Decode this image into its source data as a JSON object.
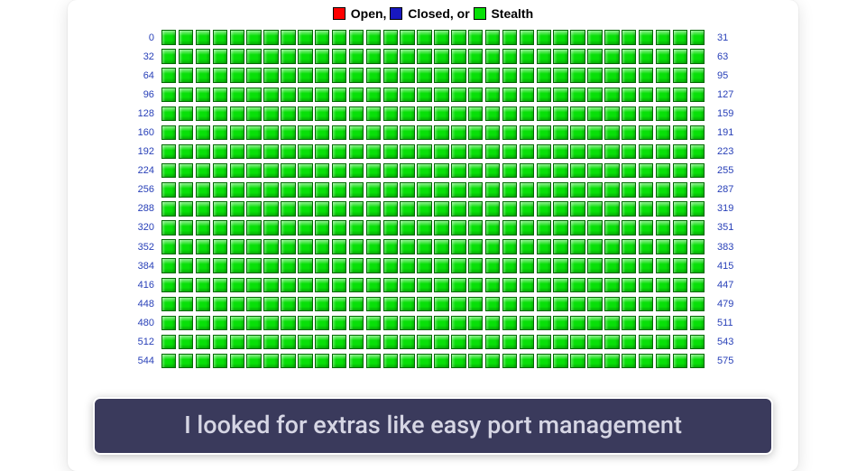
{
  "legend": {
    "items": [
      {
        "label": "Open,",
        "color": "#ff0000"
      },
      {
        "label": "Closed, or",
        "color": "#1818c0"
      },
      {
        "label": "Stealth",
        "color": "#08e008"
      }
    ],
    "text_color": "#000000",
    "font_size": 14
  },
  "grid": {
    "type": "heatmap",
    "rows": 18,
    "cols": 32,
    "row_step": 32,
    "start_port": 0,
    "row_left_labels": [
      "0",
      "32",
      "64",
      "96",
      "128",
      "160",
      "192",
      "224",
      "256",
      "288",
      "320",
      "352",
      "384",
      "416",
      "448",
      "480",
      "512",
      "544"
    ],
    "row_right_labels": [
      "31",
      "63",
      "95",
      "127",
      "159",
      "191",
      "223",
      "255",
      "287",
      "319",
      "351",
      "383",
      "415",
      "447",
      "479",
      "511",
      "543",
      "575"
    ],
    "cell_status": "stealth",
    "stealth_color": "#08e008",
    "open_color": "#ff0000",
    "closed_color": "#1818c0",
    "cell_border_color": "#046a04",
    "label_color": "#2840b8",
    "label_font_size": 11,
    "background_color": "#ffffff"
  },
  "caption": {
    "text": "I looked for extras like easy port management",
    "background_color": "#3a3a5c",
    "text_color": "#d6d6e4",
    "border_color": "#ffffff",
    "font_size": 27
  }
}
